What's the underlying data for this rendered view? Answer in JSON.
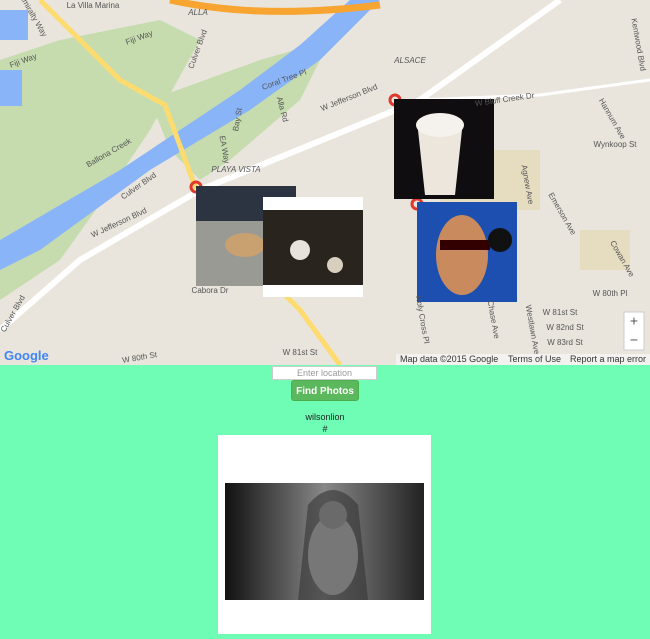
{
  "map": {
    "labels": [
      "La Villa Marina",
      "Admiralty Way",
      "Fiji Way",
      "Fiji Way",
      "ALLA",
      "Culver Blvd",
      "Coral Tree Pl",
      "Alla Rd",
      "Bay St",
      "ALSACE",
      "W Jefferson Blvd",
      "W Bluff Creek Dr",
      "Ballona Creek",
      "EA Way",
      "PLAYA VISTA",
      "Culver Blvd",
      "W Jefferson Blvd",
      "Wynkoop St",
      "Kentwood Blvd",
      "Agnew Ave",
      "Emerson Ave",
      "Westlawn Ave",
      "W 80th Pl",
      "W 81st St",
      "W 82nd St",
      "W 83rd St",
      "Holy Cross Pl",
      "Chase Ave",
      "Cowan Ave",
      "Culver Blvd",
      "Cabora Dr",
      "W 80th St",
      "W 81st St",
      "Hannum Ave"
    ],
    "logo": "Google",
    "attribution": "Map data ©2015 Google",
    "terms": "Terms of Use",
    "report": "Report a map error",
    "zoom_in": "+",
    "zoom_out": "−"
  },
  "search": {
    "placeholder": "Enter location",
    "button": "Find Photos"
  },
  "result": {
    "user": "wilsonlion",
    "tag": "#"
  }
}
